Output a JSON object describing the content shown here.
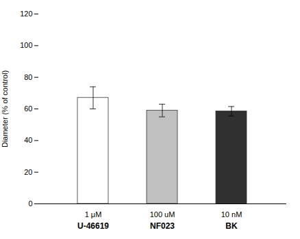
{
  "chart_data": {
    "type": "bar",
    "categories": [
      "U-46619",
      "NF023",
      "BK"
    ],
    "values": [
      67.0,
      59.0,
      58.5
    ],
    "errors": [
      7.0,
      4.0,
      3.0
    ],
    "colors": [
      "white",
      "#c0c0c0",
      "#303030"
    ],
    "annotations": [
      {
        "text": "1 μM",
        "category": "U-46619"
      },
      {
        "text": "100 uM",
        "category": "NF023"
      },
      {
        "text": "10 nM",
        "category": "BK"
      }
    ],
    "ylabel": "Diameter (% of control)",
    "ylim": [
      0,
      120
    ],
    "yticks": [
      0,
      20,
      40,
      60,
      80,
      100,
      120
    ],
    "grid": false,
    "tick_labels": "y"
  }
}
